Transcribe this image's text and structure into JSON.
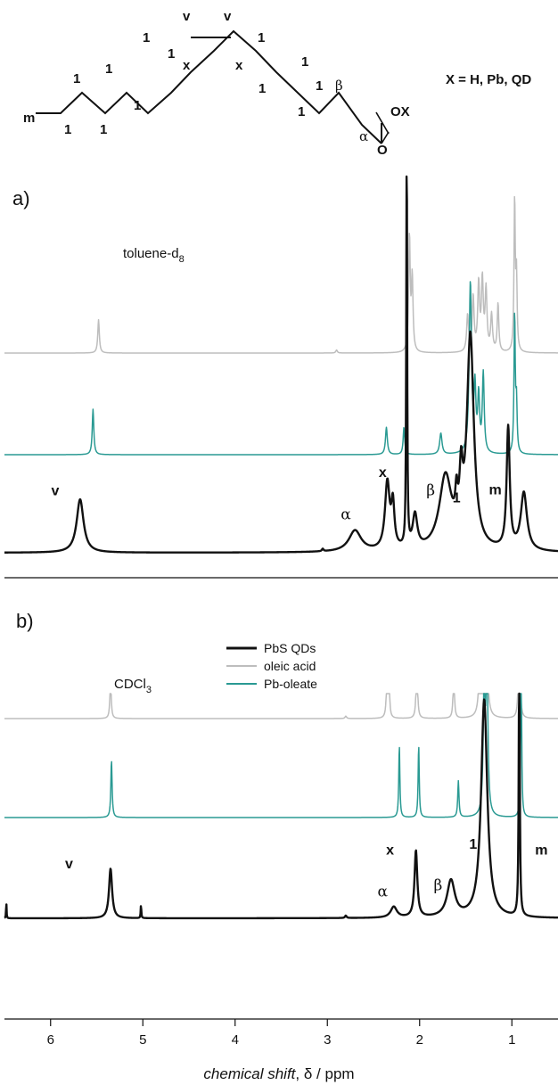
{
  "molecule": {
    "labels": {
      "m": "m",
      "one": "1",
      "v": "v",
      "x": "x",
      "alpha": "α",
      "beta": "β",
      "ox": "OX",
      "o": "O"
    },
    "substituent_note": "X = H, Pb, QD"
  },
  "chart_data": {
    "type": "line",
    "xlabel_italic": "chemical shift",
    "xlabel_rest": ", δ / ppm",
    "x_reversed": true,
    "xlim": [
      6.5,
      0.5
    ],
    "xticks": [
      "6",
      "5",
      "4",
      "3",
      "2",
      "1"
    ],
    "tick_values": [
      6,
      5,
      4,
      3,
      2,
      1
    ],
    "legend": {
      "placement": "top-center of panel b",
      "entries": [
        {
          "name": "PbS QDs",
          "color": "#111111"
        },
        {
          "name": "oleic acid",
          "color": "#bdbdbd"
        },
        {
          "name": "Pb-oleate",
          "color": "#2a9a93"
        }
      ]
    },
    "panels": [
      {
        "letter": "a)",
        "solvent": "toluene-d",
        "solvent_subscript": "8",
        "series": [
          {
            "name": "oleic acid",
            "peaks": [
              [
                5.48,
                0.55,
                0.01
              ],
              [
                2.9,
                0.05,
                0.01
              ],
              [
                2.11,
                1.9,
                0.01
              ],
              [
                2.08,
                1.2,
                0.01
              ],
              [
                1.48,
                0.6,
                0.012
              ],
              [
                1.42,
                0.9,
                0.012
              ],
              [
                1.36,
                1.1,
                0.012
              ],
              [
                1.32,
                1.15,
                0.012
              ],
              [
                1.28,
                1.0,
                0.012
              ],
              [
                1.22,
                0.6,
                0.012
              ],
              [
                1.15,
                0.8,
                0.01
              ],
              [
                0.97,
                2.5,
                0.008
              ],
              [
                0.95,
                1.2,
                0.008
              ]
            ]
          },
          {
            "name": "Pb-oleate",
            "peaks": [
              [
                5.54,
                0.75,
                0.01
              ],
              [
                2.36,
                0.45,
                0.012
              ],
              [
                2.17,
                0.45,
                0.01
              ],
              [
                1.77,
                0.35,
                0.015
              ],
              [
                1.45,
                2.8,
                0.015
              ],
              [
                1.4,
                1.0,
                0.012
              ],
              [
                1.36,
                0.9,
                0.012
              ],
              [
                1.31,
                1.3,
                0.012
              ],
              [
                0.97,
                2.3,
                0.008
              ],
              [
                0.95,
                0.8,
                0.008
              ]
            ]
          },
          {
            "name": "PbS QDs",
            "peaks": [
              [
                5.68,
                0.88,
                0.045
              ],
              [
                3.05,
                0.04,
                0.01
              ],
              [
                2.7,
                0.35,
                0.08
              ],
              [
                2.35,
                1.1,
                0.03
              ],
              [
                2.29,
                0.7,
                0.02
              ],
              [
                2.14,
                7.5,
                0.005
              ],
              [
                2.05,
                0.55,
                0.03
              ],
              [
                1.72,
                1.2,
                0.08
              ],
              [
                1.6,
                0.5,
                0.015
              ],
              [
                1.55,
                0.9,
                0.02
              ],
              [
                1.45,
                3.5,
                0.045
              ],
              [
                1.04,
                2.0,
                0.02
              ],
              [
                0.87,
                0.95,
                0.04
              ]
            ]
          }
        ],
        "peak_labels": [
          {
            "text": "v",
            "style": "bold",
            "at": 5.95,
            "height": 0.95
          },
          {
            "text": "α",
            "style": "greek",
            "at": 2.8,
            "height": 0.55
          },
          {
            "text": "x",
            "style": "bold",
            "at": 2.4,
            "height": 1.25
          },
          {
            "text": "β",
            "style": "greek",
            "at": 1.88,
            "height": 0.95
          },
          {
            "text": "1",
            "style": "bold",
            "at": 1.6,
            "height": 0.83
          },
          {
            "text": "m",
            "style": "bold",
            "at": 1.18,
            "height": 0.96
          }
        ]
      },
      {
        "letter": "b)",
        "solvent": "CDCl",
        "solvent_subscript": "3",
        "series": [
          {
            "name": "oleic acid",
            "peaks": [
              [
                5.35,
                0.72,
                0.008
              ],
              [
                2.8,
                0.04,
                0.01
              ],
              [
                2.35,
                1.55,
                0.007
              ],
              [
                2.33,
                0.5,
                0.007
              ],
              [
                2.03,
                1.2,
                0.008
              ],
              [
                1.63,
                0.85,
                0.008
              ],
              [
                1.34,
                2.0,
                0.012
              ],
              [
                1.28,
                2.7,
                0.012
              ],
              [
                0.92,
                3.6,
                0.006
              ]
            ]
          },
          {
            "name": "Pb-oleate",
            "peaks": [
              [
                5.34,
                0.95,
                0.008
              ],
              [
                2.22,
                1.2,
                0.007
              ],
              [
                2.01,
                1.2,
                0.007
              ],
              [
                1.58,
                0.6,
                0.008
              ],
              [
                1.3,
                2.2,
                0.012
              ],
              [
                1.27,
                2.5,
                0.012
              ],
              [
                0.9,
                3.2,
                0.006
              ]
            ]
          },
          {
            "name": "PbS QDs",
            "peaks": [
              [
                6.48,
                0.28,
                0.003
              ],
              [
                5.35,
                0.82,
                0.02
              ],
              [
                5.02,
                0.22,
                0.004
              ],
              [
                2.8,
                0.04,
                0.01
              ],
              [
                2.28,
                0.18,
                0.04
              ],
              [
                2.04,
                1.1,
                0.018
              ],
              [
                1.66,
                0.6,
                0.05
              ],
              [
                1.3,
                3.6,
                0.04
              ],
              [
                0.92,
                5.0,
                0.006
              ]
            ]
          }
        ],
        "peak_labels": [
          {
            "text": "v",
            "style": "bold",
            "at": 5.8,
            "height": 0.82
          },
          {
            "text": "α",
            "style": "greek",
            "at": 2.4,
            "height": 0.36
          },
          {
            "text": "x",
            "style": "bold",
            "at": 2.32,
            "height": 1.05
          },
          {
            "text": "β",
            "style": "greek",
            "at": 1.8,
            "height": 0.46
          },
          {
            "text": "1",
            "style": "bold",
            "at": 1.42,
            "height": 1.15
          },
          {
            "text": "m",
            "style": "bold",
            "at": 0.68,
            "height": 1.05
          }
        ]
      }
    ]
  }
}
